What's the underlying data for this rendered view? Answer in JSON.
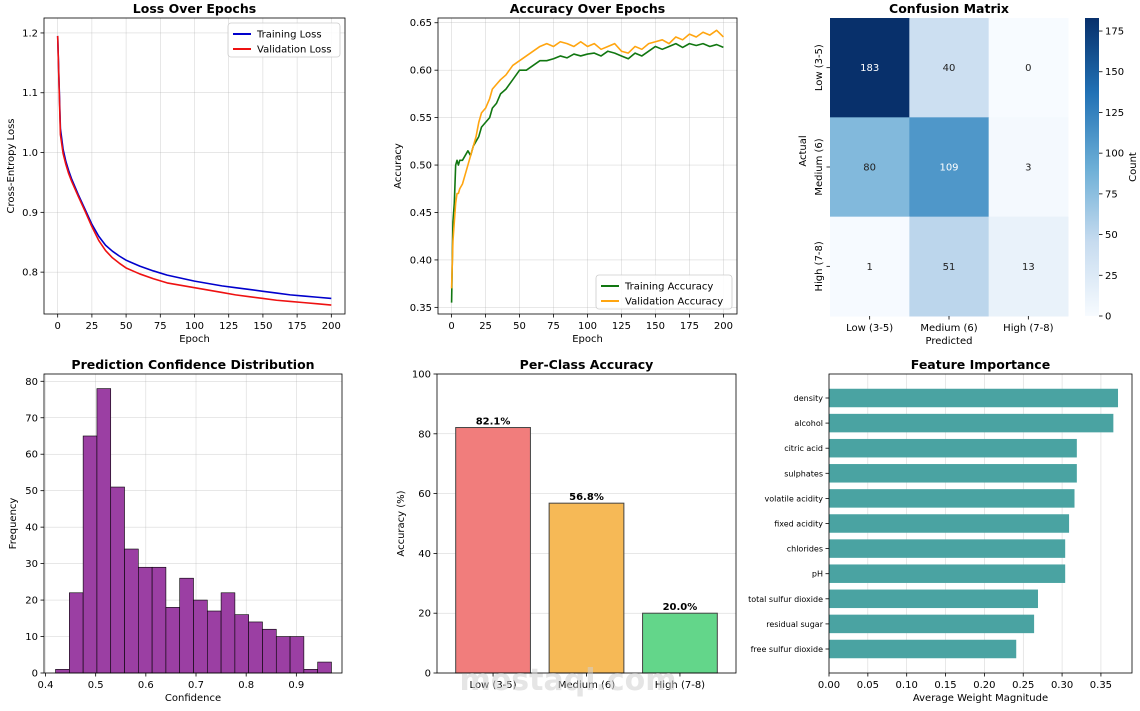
{
  "chart_data": [
    {
      "type": "line",
      "title": "Loss Over Epochs",
      "xlabel": "Epoch",
      "ylabel": "Cross-Entropy Loss",
      "xlim": [
        -10,
        210
      ],
      "ylim": [
        0.73,
        1.225
      ],
      "xticks": [
        0,
        25,
        50,
        75,
        100,
        125,
        150,
        175,
        200
      ],
      "yticks": [
        0.8,
        0.9,
        1.0,
        1.1,
        1.2
      ],
      "grid": true,
      "legend": "top-right",
      "series": [
        {
          "name": "Training Loss",
          "color": "#0000cc",
          "x": [
            0,
            2,
            4,
            6,
            8,
            10,
            15,
            20,
            25,
            30,
            35,
            40,
            45,
            50,
            60,
            70,
            80,
            90,
            100,
            110,
            120,
            130,
            140,
            150,
            160,
            170,
            180,
            190,
            200
          ],
          "y": [
            1.195,
            1.04,
            1.005,
            0.985,
            0.97,
            0.957,
            0.93,
            0.905,
            0.88,
            0.86,
            0.845,
            0.835,
            0.827,
            0.82,
            0.81,
            0.802,
            0.795,
            0.79,
            0.785,
            0.781,
            0.777,
            0.774,
            0.771,
            0.768,
            0.765,
            0.762,
            0.76,
            0.758,
            0.756
          ]
        },
        {
          "name": "Validation Loss",
          "color": "#ee1111",
          "x": [
            0,
            2,
            4,
            6,
            8,
            10,
            15,
            20,
            25,
            30,
            35,
            40,
            45,
            50,
            60,
            70,
            80,
            90,
            100,
            110,
            120,
            130,
            140,
            150,
            160,
            170,
            180,
            190,
            200
          ],
          "y": [
            1.195,
            1.03,
            0.998,
            0.98,
            0.965,
            0.953,
            0.927,
            0.902,
            0.876,
            0.853,
            0.836,
            0.824,
            0.815,
            0.807,
            0.797,
            0.789,
            0.782,
            0.778,
            0.774,
            0.77,
            0.766,
            0.762,
            0.759,
            0.756,
            0.753,
            0.751,
            0.749,
            0.747,
            0.745
          ]
        }
      ]
    },
    {
      "type": "line",
      "title": "Accuracy Over Epochs",
      "xlabel": "Epoch",
      "ylabel": "Accuracy",
      "xlim": [
        -10,
        210
      ],
      "ylim": [
        0.343,
        0.655
      ],
      "xticks": [
        0,
        25,
        50,
        75,
        100,
        125,
        150,
        175,
        200
      ],
      "yticks": [
        0.35,
        0.4,
        0.45,
        0.5,
        0.55,
        0.6,
        0.65
      ],
      "grid": true,
      "legend": "bottom-right",
      "series": [
        {
          "name": "Training Accuracy",
          "color": "#117711",
          "x": [
            0,
            1,
            2,
            3,
            4,
            5,
            6,
            8,
            10,
            12,
            14,
            16,
            18,
            20,
            22,
            25,
            28,
            30,
            33,
            36,
            40,
            45,
            50,
            55,
            60,
            65,
            70,
            75,
            80,
            85,
            90,
            95,
            100,
            105,
            110,
            115,
            120,
            125,
            130,
            135,
            140,
            145,
            150,
            155,
            160,
            165,
            170,
            175,
            180,
            185,
            190,
            195,
            200
          ],
          "y": [
            0.355,
            0.44,
            0.46,
            0.5,
            0.505,
            0.5,
            0.505,
            0.505,
            0.51,
            0.515,
            0.51,
            0.52,
            0.525,
            0.53,
            0.54,
            0.545,
            0.55,
            0.56,
            0.565,
            0.575,
            0.58,
            0.59,
            0.6,
            0.6,
            0.605,
            0.61,
            0.61,
            0.612,
            0.615,
            0.613,
            0.617,
            0.615,
            0.617,
            0.618,
            0.615,
            0.62,
            0.618,
            0.615,
            0.612,
            0.618,
            0.615,
            0.62,
            0.625,
            0.622,
            0.625,
            0.628,
            0.624,
            0.628,
            0.626,
            0.628,
            0.625,
            0.627,
            0.624
          ]
        },
        {
          "name": "Validation Accuracy",
          "color": "#ffa510",
          "x": [
            0,
            1,
            2,
            3,
            4,
            5,
            6,
            8,
            10,
            12,
            14,
            16,
            18,
            20,
            22,
            25,
            28,
            30,
            33,
            36,
            40,
            45,
            50,
            55,
            60,
            65,
            70,
            75,
            80,
            85,
            90,
            95,
            100,
            105,
            110,
            115,
            120,
            125,
            130,
            135,
            140,
            145,
            150,
            155,
            160,
            165,
            170,
            175,
            180,
            185,
            190,
            195,
            200
          ],
          "y": [
            0.37,
            0.42,
            0.44,
            0.46,
            0.47,
            0.47,
            0.475,
            0.48,
            0.49,
            0.5,
            0.51,
            0.52,
            0.53,
            0.545,
            0.555,
            0.56,
            0.57,
            0.58,
            0.585,
            0.59,
            0.595,
            0.605,
            0.61,
            0.615,
            0.62,
            0.625,
            0.628,
            0.625,
            0.63,
            0.628,
            0.625,
            0.63,
            0.625,
            0.628,
            0.622,
            0.625,
            0.628,
            0.62,
            0.618,
            0.625,
            0.622,
            0.628,
            0.63,
            0.632,
            0.628,
            0.635,
            0.632,
            0.638,
            0.635,
            0.64,
            0.637,
            0.642,
            0.635
          ]
        }
      ]
    },
    {
      "type": "heatmap",
      "title": "Confusion Matrix",
      "xlabel": "Predicted",
      "ylabel": "Actual",
      "categories": [
        "Low (3-5)",
        "Medium (6)",
        "High (7-8)"
      ],
      "matrix": [
        [
          183,
          40,
          0
        ],
        [
          80,
          109,
          3
        ],
        [
          1,
          51,
          13
        ]
      ],
      "colorbar_label": "Count",
      "colorbar_ticks": [
        0,
        25,
        50,
        75,
        100,
        125,
        150,
        175
      ],
      "vmin": 0,
      "vmax": 183
    },
    {
      "type": "bar",
      "subtype": "histogram",
      "title": "Prediction Confidence Distribution",
      "xlabel": "Confidence",
      "ylabel": "Frequency",
      "bar_color": "#9b3fa3",
      "bins_start": 0.42,
      "bin_width": 0.0275,
      "values": [
        1,
        22,
        65,
        78,
        51,
        34,
        29,
        29,
        18,
        26,
        20,
        17,
        22,
        16,
        14,
        12,
        10,
        10,
        1,
        3
      ],
      "xlim": [
        0.397,
        0.991
      ],
      "ylim": [
        0,
        82
      ],
      "xticks": [
        0.4,
        0.5,
        0.6,
        0.7,
        0.8,
        0.9
      ],
      "yticks": [
        0,
        10,
        20,
        30,
        40,
        50,
        60,
        70,
        80
      ],
      "grid": true
    },
    {
      "type": "bar",
      "title": "Per-Class Accuracy",
      "ylabel": "Accuracy (%)",
      "categories": [
        "Low (3-5)",
        "Medium (6)",
        "High (7-8)"
      ],
      "values": [
        82.1,
        56.8,
        20.0
      ],
      "labels": [
        "82.1%",
        "56.8%",
        "20.0%"
      ],
      "colors": [
        "#f17d7c",
        "#f6b956",
        "#63d68a"
      ],
      "ylim": [
        0,
        100
      ],
      "yticks": [
        0,
        20,
        40,
        60,
        80,
        100
      ],
      "grid": true
    },
    {
      "type": "bar",
      "orientation": "horizontal",
      "title": "Feature Importance",
      "xlabel": "Average Weight Magnitude",
      "categories": [
        "density",
        "alcohol",
        "citric acid",
        "sulphates",
        "volatile acidity",
        "fixed acidity",
        "chlorides",
        "pH",
        "total sulfur dioxide",
        "residual sugar",
        "free sulfur dioxide"
      ],
      "values": [
        0.372,
        0.366,
        0.319,
        0.319,
        0.316,
        0.309,
        0.304,
        0.304,
        0.269,
        0.264,
        0.241
      ],
      "bar_color": "#4aa3a2",
      "xlim": [
        0,
        0.39
      ],
      "xticks": [
        0.0,
        0.05,
        0.1,
        0.15,
        0.2,
        0.25,
        0.3,
        0.35
      ],
      "grid": true
    }
  ],
  "watermark": "mostaql.com"
}
